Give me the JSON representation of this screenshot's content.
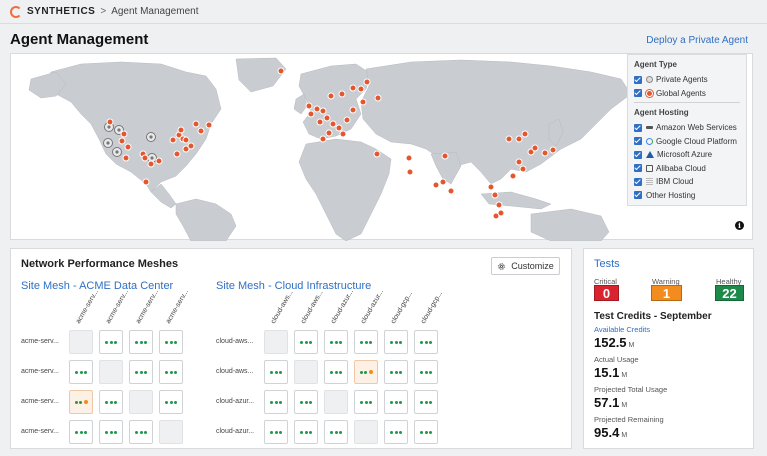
{
  "breadcrumb": {
    "brand": "SYNTHETICS",
    "separator": ">",
    "current": "Agent Management"
  },
  "page": {
    "title": "Agent Management",
    "deploy_link": "Deploy a Private Agent"
  },
  "legend": {
    "agent_type_title": "Agent Type",
    "agent_types": [
      {
        "label": "Private Agents",
        "icon": "private-agent-icon",
        "checked": true
      },
      {
        "label": "Global Agents",
        "icon": "global-agent-icon",
        "checked": true
      }
    ],
    "hosting_title": "Agent Hosting",
    "hosting": [
      {
        "label": "Amazon Web Services",
        "icon": "aws-icon",
        "checked": true
      },
      {
        "label": "Google Cloud Platform",
        "icon": "gcp-icon",
        "checked": true
      },
      {
        "label": "Microsoft Azure",
        "icon": "azure-icon",
        "checked": true
      },
      {
        "label": "Alibaba Cloud",
        "icon": "alibaba-icon",
        "checked": true
      },
      {
        "label": "IBM Cloud",
        "icon": "ibm-icon",
        "checked": true
      },
      {
        "label": "Other Hosting",
        "icon": "",
        "checked": true
      }
    ]
  },
  "colors": {
    "accent": "#2f6fc4",
    "global_agent": "#e4572e",
    "healthy": "#1e9a4a",
    "warning": "#f28c1e",
    "critical": "#d9232e",
    "map_land": "#c9ccd1"
  },
  "mesh": {
    "title": "Network Performance Meshes",
    "customize_label": "Customize",
    "groups": [
      {
        "name": "Site Mesh - ACME Data Center",
        "columns": [
          "acme-serv...",
          "acme-serv...",
          "acme-serv...",
          "acme-serv..."
        ],
        "rows": [
          "acme-serv...",
          "acme-serv...",
          "acme-serv...",
          "acme-serv..."
        ],
        "cells": [
          [
            "empty",
            "ok",
            "ok",
            "ok"
          ],
          [
            "ok",
            "empty",
            "ok",
            "ok"
          ],
          [
            "warn",
            "ok",
            "empty",
            "ok"
          ],
          [
            "ok",
            "ok",
            "ok",
            "empty"
          ]
        ]
      },
      {
        "name": "Site Mesh - Cloud Infrastructure",
        "columns": [
          "cloud-aws...",
          "cloud-aws...",
          "cloud-azur...",
          "cloud-azur...",
          "cloud-gcp...",
          "cloud-gcp..."
        ],
        "rows": [
          "cloud-aws...",
          "cloud-aws...",
          "cloud-azur...",
          "cloud-azur..."
        ],
        "cells": [
          [
            "empty",
            "ok",
            "ok",
            "ok",
            "ok",
            "ok"
          ],
          [
            "ok",
            "empty",
            "ok",
            "warn",
            "ok",
            "ok"
          ],
          [
            "ok",
            "ok",
            "empty",
            "ok",
            "ok",
            "ok"
          ],
          [
            "ok",
            "ok",
            "ok",
            "empty",
            "ok",
            "ok"
          ]
        ]
      }
    ]
  },
  "tests": {
    "title": "Tests",
    "critical": {
      "label": "Critical",
      "value": "0"
    },
    "warning": {
      "label": "Warning",
      "value": "1"
    },
    "healthy": {
      "label": "Healthy",
      "value": "22"
    },
    "credits_title": "Test Credits - September",
    "available": {
      "label": "Available Credits",
      "value": "152.5",
      "unit": "M"
    },
    "actual": {
      "label": "Actual Usage",
      "value": "15.1",
      "unit": "M"
    },
    "projected_total": {
      "label": "Projected Total Usage",
      "value": "57.1",
      "unit": "M"
    },
    "projected_remaining": {
      "label": "Projected Remaining",
      "value": "95.4",
      "unit": "M"
    }
  }
}
